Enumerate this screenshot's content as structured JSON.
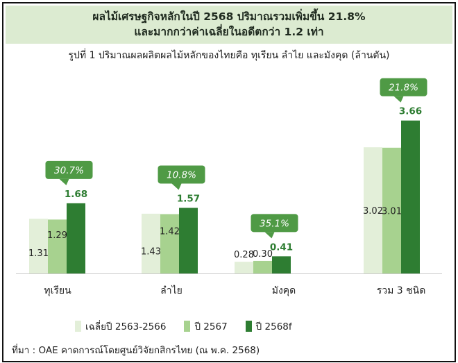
{
  "header": {
    "line1": "ผลไม้เศรษฐกิจหลักในปี 2568 ปริมาณรวมเพิ่มขึ้น 21.8%",
    "line2": "และมากกว่าค่าเฉลี่ยในอดีตกว่า 1.2 เท่า"
  },
  "subtitle": "รูปที่ 1 ปริมาณผลผลิตผลไม้หลักของไทยคือ ทุเรียน ลำไย และมังคุด (ล้านตัน)",
  "source": "ที่มา : OAE คาดการณ์โดยศูนย์วิจัยกสิกรไทย (ณ พ.ค. 2568)",
  "colors": {
    "avg": "#e3efd9",
    "y2567": "#a7d28f",
    "y2568": "#2e7d32",
    "callout": "#4f9a45",
    "header_bg": "#dcebd1"
  },
  "chart_data": {
    "type": "bar",
    "categories": [
      "ทุเรียน",
      "ลำไย",
      "มังคุด",
      "รวม 3 ชนิด"
    ],
    "series": [
      {
        "name": "เฉลี่ยปี 2563-2566",
        "values": [
          1.31,
          1.43,
          0.28,
          3.02
        ]
      },
      {
        "name": "ปี 2567",
        "values": [
          1.29,
          1.42,
          0.3,
          3.01
        ]
      },
      {
        "name": "ปี 2568f",
        "values": [
          1.68,
          1.57,
          0.41,
          3.66
        ]
      }
    ],
    "value_labels": [
      [
        "1.31",
        "1.43",
        "0.28",
        "3.02"
      ],
      [
        "1.29",
        "1.42",
        "0.30",
        "3.01"
      ],
      [
        "1.68",
        "1.57",
        "0.41",
        "3.66"
      ]
    ],
    "growth_labels": [
      "30.7%",
      "10.8%",
      "35.1%",
      "21.8%"
    ],
    "ylim": [
      0,
      4.2
    ],
    "grid": false,
    "legend_position": "bottom"
  }
}
